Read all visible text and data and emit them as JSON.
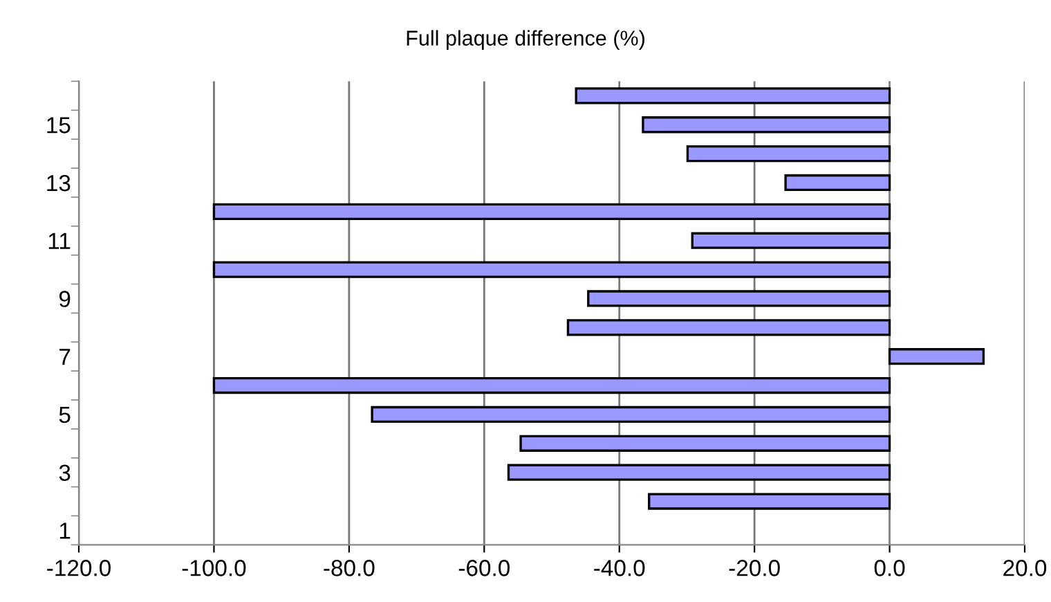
{
  "chart_data": {
    "type": "bar",
    "orientation": "horizontal",
    "title": "Full plaque difference (%)",
    "categories": [
      null,
      "15",
      null,
      "13",
      null,
      "11",
      null,
      "9",
      null,
      "7",
      null,
      "5",
      null,
      "3",
      null,
      "1"
    ],
    "values": [
      -46.4,
      -36.5,
      -29.9,
      -15.4,
      -100,
      -29.2,
      -100,
      -44.6,
      -47.6,
      13.9,
      -100,
      -76.6,
      -54.6,
      -56.4,
      -35.6,
      null
    ],
    "color": "#9999ff",
    "xlim": [
      -120,
      20
    ],
    "xticks": [
      {
        "value": -120,
        "label": "-120.0"
      },
      {
        "value": -100,
        "label": "-100.0"
      },
      {
        "value": -80,
        "label": "-80.0"
      },
      {
        "value": -60,
        "label": "-60.0"
      },
      {
        "value": -40,
        "label": "-40.0"
      },
      {
        "value": -20,
        "label": "-20.0"
      },
      {
        "value": 0,
        "label": "0.0"
      },
      {
        "value": 20,
        "label": "20.0"
      }
    ],
    "grid": "x",
    "legend": false
  }
}
